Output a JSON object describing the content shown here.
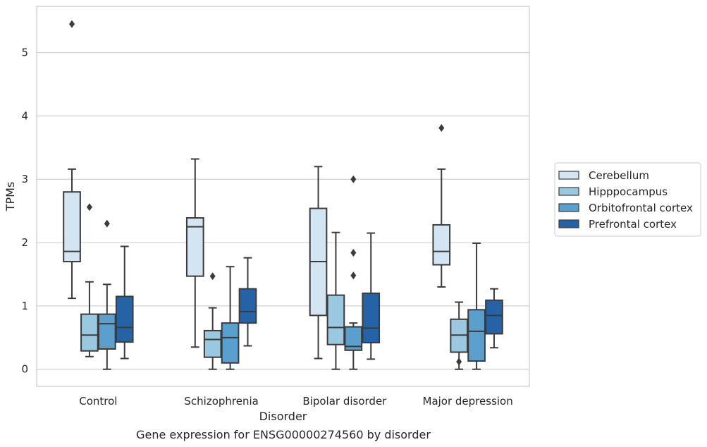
{
  "chart_data": {
    "type": "box",
    "caption": "Gene expression for ENSG00000274560 by disorder",
    "xlabel": "Disorder",
    "ylabel": "TPMs",
    "ylim": [
      -0.27,
      5.73
    ],
    "yticks": [
      0,
      1,
      2,
      3,
      4,
      5
    ],
    "grid": "horizontal",
    "legend_position": "right",
    "categories": [
      "Control",
      "Schizophrenia",
      "Bipolar disorder",
      "Major depression"
    ],
    "series": [
      {
        "name": "Cerebellum",
        "color": "#d3e4f3",
        "boxes": [
          {
            "whislo": 1.12,
            "q1": 1.7,
            "med": 1.86,
            "q3": 2.8,
            "whishi": 3.16,
            "fliers": [
              5.45
            ]
          },
          {
            "whislo": 0.35,
            "q1": 1.47,
            "med": 2.25,
            "q3": 2.39,
            "whishi": 3.32,
            "fliers": []
          },
          {
            "whislo": 0.17,
            "q1": 0.85,
            "med": 1.7,
            "q3": 2.54,
            "whishi": 3.2,
            "fliers": []
          },
          {
            "whislo": 1.3,
            "q1": 1.65,
            "med": 1.86,
            "q3": 2.28,
            "whishi": 3.16,
            "fliers": [
              3.81
            ]
          }
        ]
      },
      {
        "name": "Hipppocampus",
        "color": "#9ac8e0",
        "boxes": [
          {
            "whislo": 0.2,
            "q1": 0.29,
            "med": 0.54,
            "q3": 0.87,
            "whishi": 1.38,
            "fliers": [
              2.56
            ]
          },
          {
            "whislo": 0.0,
            "q1": 0.19,
            "med": 0.47,
            "q3": 0.61,
            "whishi": 0.97,
            "fliers": [
              1.47
            ]
          },
          {
            "whislo": 0.0,
            "q1": 0.39,
            "med": 0.66,
            "q3": 1.17,
            "whishi": 2.16,
            "fliers": []
          },
          {
            "whislo": 0.0,
            "q1": 0.27,
            "med": 0.54,
            "q3": 0.79,
            "whishi": 1.06,
            "fliers": [
              0.12
            ]
          }
        ]
      },
      {
        "name": "Orbitofrontal cortex",
        "color": "#5a9fcd",
        "boxes": [
          {
            "whislo": 0.0,
            "q1": 0.32,
            "med": 0.72,
            "q3": 0.87,
            "whishi": 1.34,
            "fliers": [
              2.3
            ]
          },
          {
            "whislo": 0.0,
            "q1": 0.1,
            "med": 0.5,
            "q3": 0.73,
            "whishi": 1.62,
            "fliers": []
          },
          {
            "whislo": 0.0,
            "q1": 0.3,
            "med": 0.36,
            "q3": 0.67,
            "whishi": 0.73,
            "fliers": [
              3.0,
              1.84,
              1.48
            ]
          },
          {
            "whislo": 0.0,
            "q1": 0.13,
            "med": 0.6,
            "q3": 0.94,
            "whishi": 1.99,
            "fliers": []
          }
        ]
      },
      {
        "name": "Prefrontal cortex",
        "color": "#2563a6",
        "boxes": [
          {
            "whislo": 0.17,
            "q1": 0.43,
            "med": 0.66,
            "q3": 1.15,
            "whishi": 1.94,
            "fliers": []
          },
          {
            "whislo": 0.37,
            "q1": 0.73,
            "med": 0.91,
            "q3": 1.27,
            "whishi": 1.76,
            "fliers": []
          },
          {
            "whislo": 0.16,
            "q1": 0.42,
            "med": 0.65,
            "q3": 1.2,
            "whishi": 2.15,
            "fliers": []
          },
          {
            "whislo": 0.34,
            "q1": 0.56,
            "med": 0.85,
            "q3": 1.09,
            "whishi": 1.27,
            "fliers": []
          }
        ]
      }
    ]
  }
}
